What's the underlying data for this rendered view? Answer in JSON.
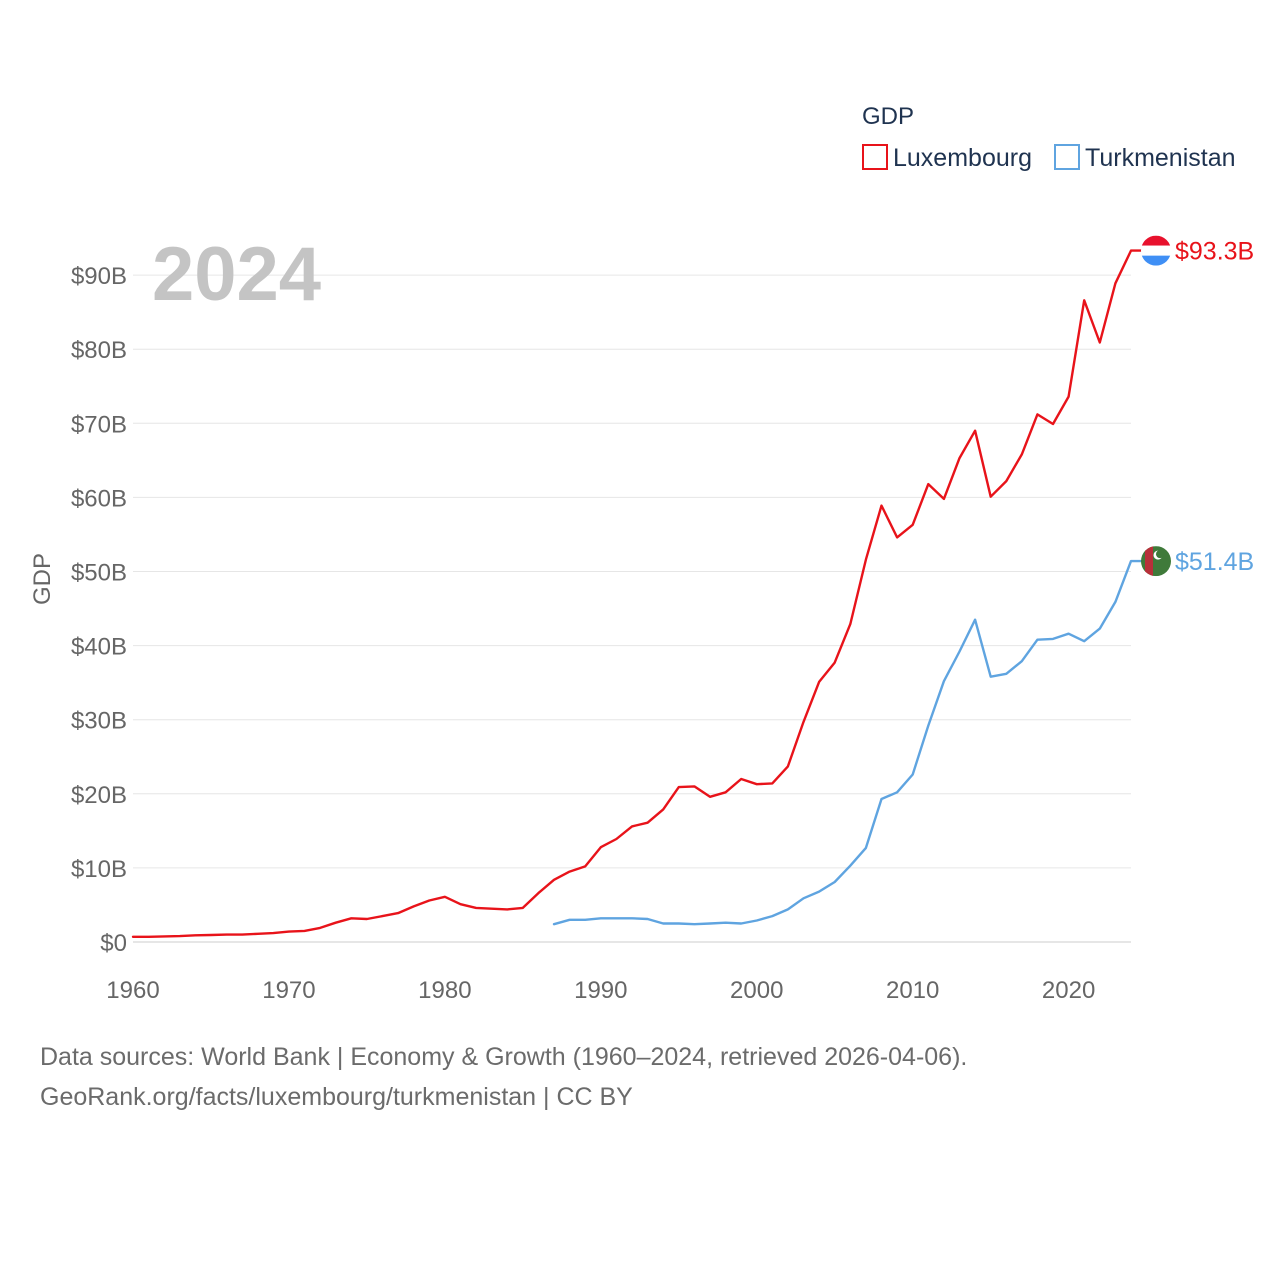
{
  "colors": {
    "luxembourg": "#e8131a",
    "turkmenistan": "#5fa4e0",
    "grid": "#e6e6e6",
    "text": "#666666"
  },
  "chart_data": {
    "type": "line",
    "title": "",
    "xlabel": "",
    "ylabel": "GDP",
    "year_label": "2024",
    "legend_title": "GDP",
    "legend_position": "top-right",
    "grid": true,
    "xlim": [
      1960,
      2024
    ],
    "ylim": [
      0,
      95
    ],
    "x_ticks": [
      1960,
      1970,
      1980,
      1990,
      2000,
      2010,
      2020
    ],
    "x_tick_labels": [
      "1960",
      "1970",
      "1980",
      "1990",
      "2000",
      "2010",
      "2020"
    ],
    "y_ticks": [
      0,
      10,
      20,
      30,
      40,
      50,
      60,
      70,
      80,
      90
    ],
    "y_tick_labels": [
      "$0",
      "$10B",
      "$20B",
      "$30B",
      "$40B",
      "$50B",
      "$60B",
      "$70B",
      "$80B",
      "$90B"
    ],
    "series": [
      {
        "name": "Luxembourg",
        "key": "luxembourg",
        "end_label": "$93.3B",
        "flag_icon": "luxembourg-flag-icon",
        "x": [
          1960,
          1961,
          1962,
          1963,
          1964,
          1965,
          1966,
          1967,
          1968,
          1969,
          1970,
          1971,
          1972,
          1973,
          1974,
          1975,
          1976,
          1977,
          1978,
          1979,
          1980,
          1981,
          1982,
          1983,
          1984,
          1985,
          1986,
          1987,
          1988,
          1989,
          1990,
          1991,
          1992,
          1993,
          1994,
          1995,
          1996,
          1997,
          1998,
          1999,
          2000,
          2001,
          2002,
          2003,
          2004,
          2005,
          2006,
          2007,
          2008,
          2009,
          2010,
          2011,
          2012,
          2013,
          2014,
          2015,
          2016,
          2017,
          2018,
          2019,
          2020,
          2021,
          2022,
          2023,
          2024
        ],
        "values": [
          0.7,
          0.7,
          0.75,
          0.8,
          0.9,
          0.95,
          1.0,
          1.0,
          1.1,
          1.2,
          1.4,
          1.5,
          1.9,
          2.6,
          3.2,
          3.1,
          3.5,
          3.9,
          4.8,
          5.6,
          6.1,
          5.1,
          4.6,
          4.5,
          4.4,
          4.6,
          6.6,
          8.4,
          9.5,
          10.2,
          12.8,
          13.9,
          15.6,
          16.1,
          17.9,
          20.9,
          21.0,
          19.6,
          20.2,
          22.0,
          21.3,
          21.4,
          23.7,
          29.7,
          35.1,
          37.7,
          42.9,
          51.6,
          58.9,
          54.6,
          56.3,
          61.8,
          59.8,
          65.3,
          69.0,
          60.1,
          62.2,
          65.8,
          71.2,
          69.9,
          73.6,
          86.6,
          80.9,
          88.9,
          93.3
        ]
      },
      {
        "name": "Turkmenistan",
        "key": "turkmenistan",
        "end_label": "$51.4B",
        "flag_icon": "turkmenistan-flag-icon",
        "x": [
          1987,
          1988,
          1989,
          1990,
          1991,
          1992,
          1993,
          1994,
          1995,
          1996,
          1997,
          1998,
          1999,
          2000,
          2001,
          2002,
          2003,
          2004,
          2005,
          2006,
          2007,
          2008,
          2009,
          2010,
          2011,
          2012,
          2013,
          2014,
          2015,
          2016,
          2017,
          2018,
          2019,
          2020,
          2021,
          2022,
          2023,
          2024
        ],
        "values": [
          2.4,
          3.0,
          3.0,
          3.2,
          3.2,
          3.2,
          3.1,
          2.5,
          2.5,
          2.4,
          2.5,
          2.6,
          2.5,
          2.9,
          3.5,
          4.4,
          5.9,
          6.8,
          8.1,
          10.3,
          12.7,
          19.3,
          20.2,
          22.6,
          29.2,
          35.2,
          39.2,
          43.5,
          35.8,
          36.2,
          37.9,
          40.8,
          40.9,
          41.6,
          40.6,
          42.3,
          45.9,
          51.4
        ]
      }
    ]
  },
  "footer": {
    "line1": "Data sources: World Bank | Economy & Growth (1960–2024, retrieved 2026-04-06).",
    "line2": "GeoRank.org/facts/luxembourg/turkmenistan | CC BY"
  }
}
